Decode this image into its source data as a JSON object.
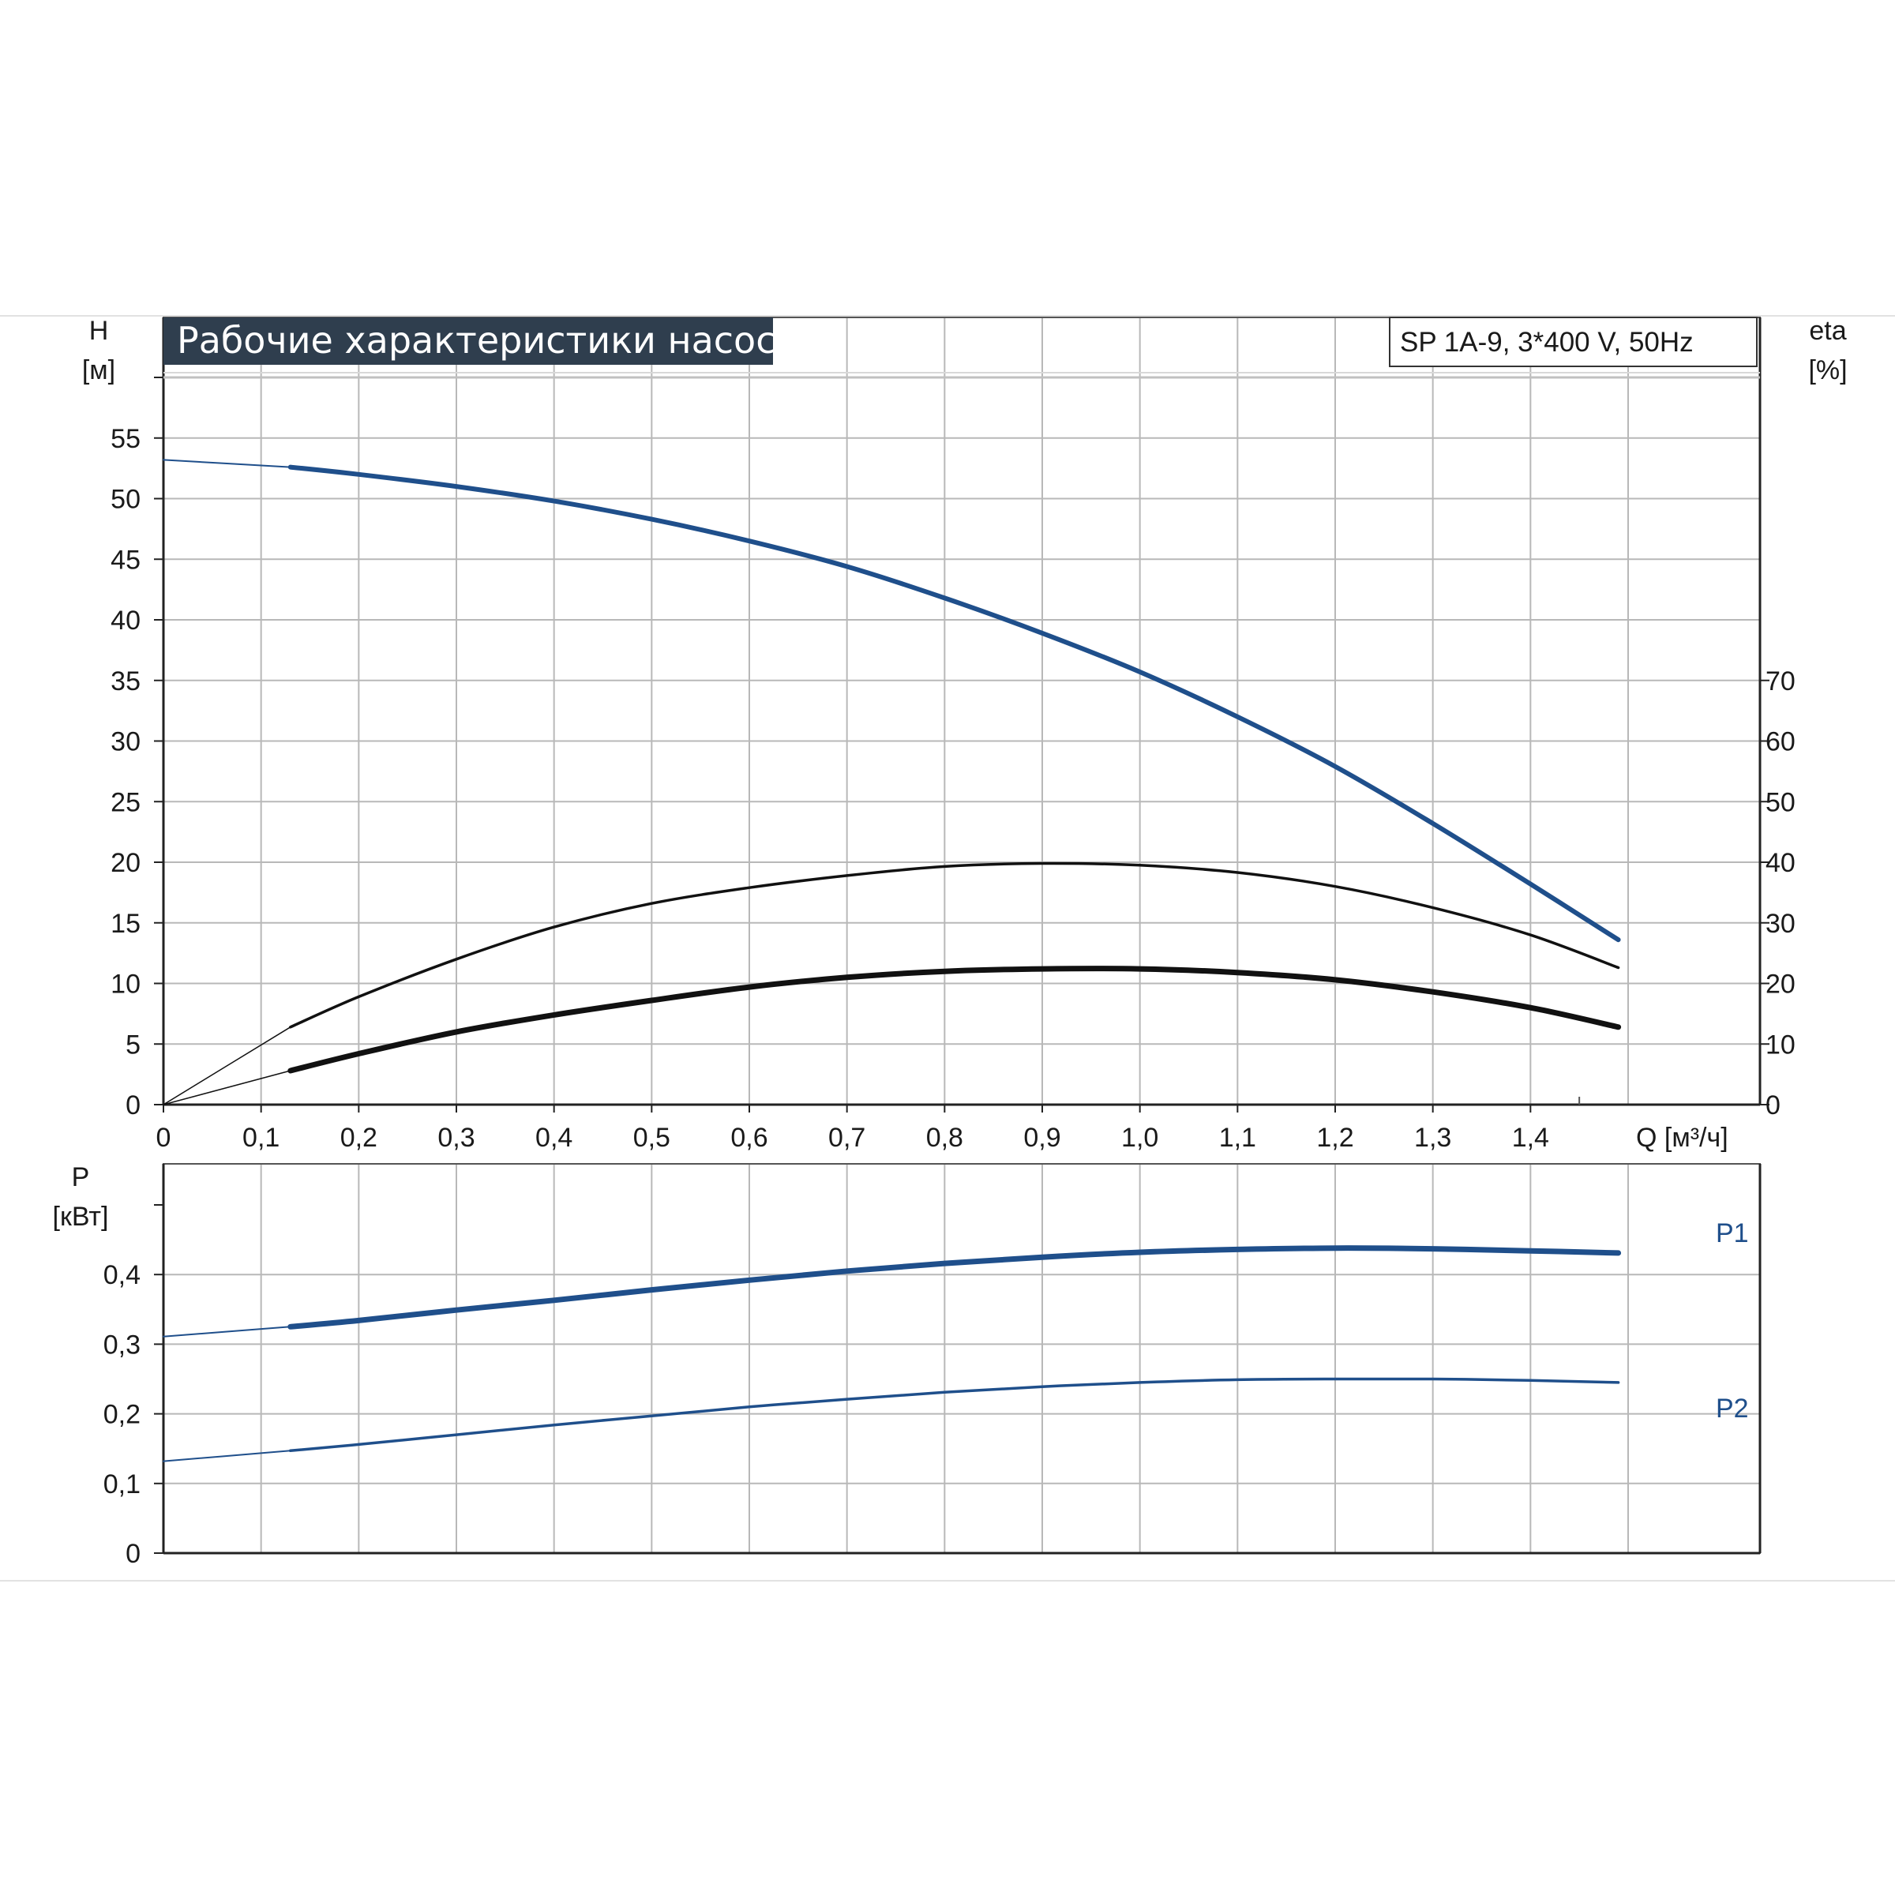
{
  "colors": {
    "curve_blue": "#1f4f8b",
    "curve_black": "#111111",
    "grid": "#b8b8b8",
    "title_bg": "#2f3e4e",
    "title_fg": "#ffffff"
  },
  "chart_data": [
    {
      "type": "line",
      "title": "Рабочие характеристики насоса",
      "subtitle": "SP 1A-9, 3*400 V, 50Hz",
      "xlabel": "Q [м³/ч]",
      "ylabel": "H [м]",
      "y2label": "eta [%]",
      "xlim": [
        0,
        1.5
      ],
      "ylim": [
        0,
        60
      ],
      "y2lim": [
        0,
        120
      ],
      "grid": true,
      "x_ticks": [
        "0",
        "0,1",
        "0,2",
        "0,3",
        "0,4",
        "0,5",
        "0,6",
        "0,7",
        "0,8",
        "0,9",
        "1,0",
        "1,1",
        "1,2",
        "1,3",
        "1,4"
      ],
      "y_ticks": [
        "0",
        "5",
        "10",
        "15",
        "20",
        "25",
        "30",
        "35",
        "40",
        "45",
        "50",
        "55"
      ],
      "y2_ticks": [
        "0",
        "10",
        "20",
        "30",
        "40",
        "50",
        "60",
        "70"
      ],
      "series": [
        {
          "axis": "left",
          "style": "head",
          "x": [
            0,
            0.13,
            0.2,
            0.3,
            0.4,
            0.5,
            0.6,
            0.7,
            0.8,
            0.9,
            1.0,
            1.1,
            1.2,
            1.3,
            1.4,
            1.49
          ],
          "values": [
            53.2,
            52.6,
            52.0,
            51.0,
            49.8,
            48.3,
            46.5,
            44.4,
            41.8,
            38.9,
            35.7,
            32.0,
            27.9,
            23.2,
            18.2,
            13.6
          ]
        },
        {
          "axis": "right",
          "style": "efficiency",
          "x": [
            0,
            0.13,
            0.2,
            0.3,
            0.4,
            0.5,
            0.6,
            0.7,
            0.8,
            0.9,
            1.0,
            1.1,
            1.2,
            1.3,
            1.4,
            1.49
          ],
          "values": [
            0,
            12.8,
            17.8,
            24.0,
            29.3,
            33.2,
            35.8,
            37.8,
            39.3,
            39.8,
            39.5,
            38.3,
            36.0,
            32.5,
            28.0,
            22.6
          ]
        },
        {
          "axis": "left",
          "style": "npsh",
          "x": [
            0,
            0.13,
            0.2,
            0.3,
            0.4,
            0.5,
            0.6,
            0.7,
            0.8,
            0.9,
            1.0,
            1.1,
            1.2,
            1.3,
            1.4,
            1.49
          ],
          "values": [
            0,
            2.8,
            4.2,
            6.0,
            7.4,
            8.6,
            9.7,
            10.5,
            11.0,
            11.2,
            11.2,
            10.9,
            10.3,
            9.3,
            8.0,
            6.4
          ]
        }
      ]
    },
    {
      "type": "line",
      "xlabel": "",
      "ylabel": "P [кВт]",
      "xlim": [
        0,
        1.5
      ],
      "ylim": [
        0,
        0.5
      ],
      "grid": true,
      "y_ticks": [
        "0",
        "0,1",
        "0,2",
        "0,3",
        "0,4"
      ],
      "series": [
        {
          "name": "P1",
          "x": [
            0,
            0.13,
            0.2,
            0.3,
            0.4,
            0.5,
            0.6,
            0.7,
            0.8,
            0.9,
            1.0,
            1.1,
            1.2,
            1.3,
            1.4,
            1.49
          ],
          "values": [
            0.311,
            0.325,
            0.334,
            0.349,
            0.363,
            0.378,
            0.392,
            0.405,
            0.416,
            0.425,
            0.432,
            0.436,
            0.438,
            0.437,
            0.434,
            0.431
          ]
        },
        {
          "name": "P2",
          "x": [
            0,
            0.13,
            0.2,
            0.3,
            0.4,
            0.5,
            0.6,
            0.7,
            0.8,
            0.9,
            1.0,
            1.1,
            1.2,
            1.3,
            1.4,
            1.49
          ],
          "values": [
            0.132,
            0.147,
            0.156,
            0.17,
            0.184,
            0.197,
            0.21,
            0.221,
            0.231,
            0.239,
            0.245,
            0.249,
            0.25,
            0.25,
            0.248,
            0.245
          ]
        }
      ]
    }
  ]
}
